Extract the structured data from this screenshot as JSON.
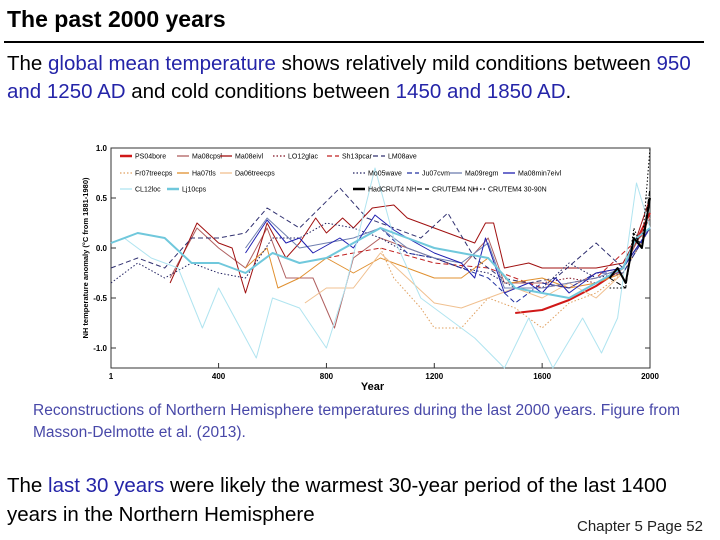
{
  "slide": {
    "title": "The past 2000 years",
    "paragraph": {
      "t1": "The ",
      "h1": "global mean temperature",
      "t2": " shows relatively mild conditions between ",
      "h2": "950 and 1250 AD",
      "t3": " and cold conditions between ",
      "h3": "1450 and 1850 AD",
      "t4": "."
    },
    "caption": "Reconstructions of  Northern Hemisphere temperatures during the last 2000 years. Figure from Masson-Delmotte et al. (2013).",
    "bottom": {
      "t1": "The ",
      "h1": "last 30 years",
      "t2": " were likely the warmest 30-year period of the last 1400 years in the Northern Hemisphere"
    },
    "page_label": "Chapter 5 Page 52",
    "colors": {
      "text": "#000000",
      "highlight": "#2424a8",
      "caption": "#4848a8"
    }
  },
  "chart_data": {
    "type": "line",
    "xlabel": "Year",
    "ylabel": "NH temperature anomaly (°C from 1881-1980)",
    "xlim": [
      1,
      2000
    ],
    "ylim": [
      -1.2,
      1.0
    ],
    "xticks": [
      "1",
      "400",
      "800",
      "1200",
      "1600",
      "2000"
    ],
    "yticks": [
      "1.0",
      "0.5",
      "0.0",
      "-0.5",
      "-1.0"
    ],
    "legend_placement": "top",
    "series": [
      {
        "name": "PS04bore",
        "color": "#d01818",
        "style": "solid-thick",
        "points": [
          [
            1500,
            -0.65
          ],
          [
            1600,
            -0.62
          ],
          [
            1700,
            -0.52
          ],
          [
            1800,
            -0.38
          ],
          [
            1900,
            -0.2
          ],
          [
            2000,
            0.35
          ]
        ]
      },
      {
        "name": "Ma08cpsl",
        "color": "#b06060",
        "style": "solid",
        "points": [
          [
            220,
            -0.3
          ],
          [
            320,
            0.2
          ],
          [
            400,
            0.0
          ],
          [
            500,
            -0.2
          ],
          [
            580,
            0.2
          ],
          [
            650,
            -0.3
          ],
          [
            750,
            -0.3
          ],
          [
            830,
            -0.8
          ],
          [
            900,
            -0.1
          ],
          [
            1000,
            0.1
          ],
          [
            1100,
            0.0
          ],
          [
            1200,
            -0.1
          ],
          [
            1300,
            -0.2
          ],
          [
            1400,
            0.1
          ],
          [
            1460,
            -0.35
          ],
          [
            1600,
            -0.35
          ],
          [
            1700,
            -0.4
          ],
          [
            1800,
            -0.25
          ],
          [
            1900,
            -0.2
          ],
          [
            2000,
            0.3
          ]
        ]
      },
      {
        "name": "Ma08eivl",
        "color": "#a01010",
        "style": "solid",
        "points": [
          [
            220,
            -0.35
          ],
          [
            320,
            0.25
          ],
          [
            400,
            0.05
          ],
          [
            450,
            0.0
          ],
          [
            500,
            -0.45
          ],
          [
            580,
            0.25
          ],
          [
            650,
            -0.1
          ],
          [
            700,
            0.05
          ],
          [
            760,
            0.3
          ],
          [
            800,
            0.15
          ],
          [
            860,
            0.3
          ],
          [
            900,
            0.2
          ],
          [
            970,
            0.4
          ],
          [
            1050,
            0.43
          ],
          [
            1100,
            0.3
          ],
          [
            1200,
            0.2
          ],
          [
            1300,
            0.1
          ],
          [
            1350,
            0.05
          ],
          [
            1390,
            0.25
          ],
          [
            1420,
            0.25
          ],
          [
            1460,
            -0.2
          ],
          [
            1550,
            -0.15
          ],
          [
            1600,
            -0.2
          ],
          [
            1700,
            -0.2
          ],
          [
            1800,
            -0.2
          ],
          [
            1900,
            -0.15
          ],
          [
            1950,
            0.1
          ],
          [
            2000,
            0.5
          ]
        ]
      },
      {
        "name": "LO12glac",
        "color": "#801020",
        "style": "dotted",
        "points": [
          [
            1600,
            -0.35
          ],
          [
            1700,
            -0.3
          ],
          [
            1800,
            -0.35
          ],
          [
            1900,
            -0.2
          ],
          [
            2000,
            0.2
          ]
        ]
      },
      {
        "name": "Sh13pcar",
        "color": "#c02020",
        "style": "dashed",
        "points": [
          [
            800,
            -0.1
          ],
          [
            1000,
            0.0
          ],
          [
            1200,
            -0.15
          ],
          [
            1400,
            -0.2
          ],
          [
            1600,
            -0.4
          ],
          [
            1800,
            -0.3
          ],
          [
            2000,
            0.2
          ]
        ]
      },
      {
        "name": "LM08ave",
        "color": "#303070",
        "style": "dashed",
        "points": [
          [
            1,
            -0.2
          ],
          [
            100,
            -0.1
          ],
          [
            200,
            -0.2
          ],
          [
            300,
            0.1
          ],
          [
            400,
            0.1
          ],
          [
            500,
            0.15
          ],
          [
            580,
            0.4
          ],
          [
            700,
            0.2
          ],
          [
            850,
            0.6
          ],
          [
            950,
            0.3
          ],
          [
            1050,
            0.2
          ],
          [
            1150,
            0.1
          ],
          [
            1250,
            0.35
          ],
          [
            1350,
            -0.1
          ],
          [
            1450,
            -0.3
          ],
          [
            1550,
            -0.35
          ],
          [
            1650,
            -0.3
          ],
          [
            1800,
            0.05
          ],
          [
            1900,
            -0.2
          ],
          [
            2000,
            0.2
          ]
        ]
      },
      {
        "name": "Fr07treecps",
        "color": "#e0a060",
        "style": "dotted",
        "points": [
          [
            1000,
            0.0
          ],
          [
            1050,
            -0.3
          ],
          [
            1100,
            -0.45
          ],
          [
            1150,
            -0.6
          ],
          [
            1200,
            -0.8
          ],
          [
            1300,
            -0.8
          ],
          [
            1400,
            -0.5
          ],
          [
            1500,
            -0.6
          ],
          [
            1600,
            -0.8
          ],
          [
            1700,
            -0.55
          ],
          [
            1800,
            -0.45
          ],
          [
            1900,
            -0.25
          ],
          [
            2000,
            0.2
          ]
        ]
      },
      {
        "name": "Ha07tls",
        "color": "#e09030",
        "style": "solid",
        "points": [
          [
            500,
            -0.2
          ],
          [
            580,
            0.0
          ],
          [
            620,
            -0.4
          ],
          [
            700,
            -0.3
          ],
          [
            800,
            -0.1
          ],
          [
            900,
            -0.25
          ],
          [
            1000,
            -0.1
          ],
          [
            1100,
            -0.2
          ],
          [
            1200,
            -0.3
          ],
          [
            1300,
            -0.3
          ],
          [
            1400,
            -0.1
          ],
          [
            1480,
            -0.35
          ],
          [
            1600,
            -0.3
          ],
          [
            1700,
            -0.4
          ],
          [
            1800,
            -0.35
          ],
          [
            1900,
            -0.25
          ],
          [
            2000,
            0.2
          ]
        ]
      },
      {
        "name": "Da06treecps",
        "color": "#f0c090",
        "style": "solid",
        "points": [
          [
            720,
            -0.55
          ],
          [
            800,
            -0.4
          ],
          [
            900,
            -0.4
          ],
          [
            1000,
            -0.05
          ],
          [
            1100,
            -0.3
          ],
          [
            1200,
            -0.55
          ],
          [
            1300,
            -0.6
          ],
          [
            1400,
            -0.5
          ],
          [
            1500,
            -0.4
          ],
          [
            1600,
            -0.5
          ],
          [
            1700,
            -0.35
          ],
          [
            1800,
            -0.5
          ],
          [
            1900,
            -0.25
          ],
          [
            2000,
            0.2
          ]
        ]
      },
      {
        "name": "Mo05wave",
        "color": "#202060",
        "style": "dotted",
        "points": [
          [
            1,
            -0.35
          ],
          [
            100,
            -0.15
          ],
          [
            200,
            -0.3
          ],
          [
            300,
            -0.15
          ],
          [
            400,
            -0.25
          ],
          [
            500,
            -0.3
          ],
          [
            600,
            0.1
          ],
          [
            700,
            0.1
          ],
          [
            800,
            0.25
          ],
          [
            900,
            0.2
          ],
          [
            1000,
            0.1
          ],
          [
            1100,
            -0.05
          ],
          [
            1200,
            -0.1
          ],
          [
            1300,
            -0.2
          ],
          [
            1400,
            -0.25
          ],
          [
            1500,
            -0.4
          ],
          [
            1600,
            -0.4
          ],
          [
            1700,
            -0.15
          ],
          [
            1800,
            -0.3
          ],
          [
            1900,
            -0.25
          ],
          [
            2000,
            0.2
          ]
        ]
      },
      {
        "name": "Ju07cvm",
        "color": "#2030a0",
        "style": "dashed",
        "points": [
          [
            1000,
            0.2
          ],
          [
            1100,
            -0.05
          ],
          [
            1200,
            -0.1
          ],
          [
            1300,
            -0.2
          ],
          [
            1400,
            -0.3
          ],
          [
            1500,
            -0.55
          ],
          [
            1600,
            -0.35
          ],
          [
            1700,
            -0.4
          ],
          [
            1800,
            -0.25
          ],
          [
            1900,
            -0.25
          ],
          [
            2000,
            0.2
          ]
        ]
      },
      {
        "name": "Ma09regm",
        "color": "#7080b0",
        "style": "solid",
        "points": [
          [
            500,
            0.0
          ],
          [
            580,
            0.3
          ],
          [
            700,
            0.0
          ],
          [
            800,
            0.05
          ],
          [
            900,
            0.1
          ],
          [
            1000,
            0.2
          ],
          [
            1100,
            0.0
          ],
          [
            1200,
            -0.1
          ],
          [
            1300,
            -0.15
          ],
          [
            1400,
            0.05
          ],
          [
            1460,
            -0.4
          ],
          [
            1600,
            -0.4
          ],
          [
            1700,
            -0.35
          ],
          [
            1800,
            -0.3
          ],
          [
            1900,
            -0.2
          ],
          [
            2000,
            0.2
          ]
        ]
      },
      {
        "name": "Ma08min7eivl",
        "color": "#2020b0",
        "style": "solid",
        "points": [
          [
            500,
            -0.05
          ],
          [
            580,
            0.28
          ],
          [
            650,
            0.05
          ],
          [
            700,
            0.1
          ],
          [
            750,
            -0.05
          ],
          [
            850,
            0.1
          ],
          [
            900,
            0.0
          ],
          [
            980,
            0.33
          ],
          [
            1050,
            0.18
          ],
          [
            1100,
            0.1
          ],
          [
            1200,
            -0.05
          ],
          [
            1300,
            -0.15
          ],
          [
            1350,
            -0.3
          ],
          [
            1390,
            0.1
          ],
          [
            1460,
            -0.45
          ],
          [
            1550,
            -0.35
          ],
          [
            1600,
            -0.45
          ],
          [
            1650,
            -0.3
          ],
          [
            1700,
            -0.45
          ],
          [
            1800,
            -0.25
          ],
          [
            1900,
            -0.2
          ],
          [
            2000,
            0.2
          ]
        ]
      },
      {
        "name": "CL12loc",
        "color": "#b0e4f0",
        "style": "solid",
        "points": [
          [
            1,
            0.05
          ],
          [
            50,
            0.1
          ],
          [
            150,
            -0.1
          ],
          [
            250,
            -0.2
          ],
          [
            340,
            -0.8
          ],
          [
            400,
            -0.4
          ],
          [
            460,
            -0.7
          ],
          [
            540,
            -1.1
          ],
          [
            600,
            -0.5
          ],
          [
            700,
            -0.6
          ],
          [
            800,
            -1.0
          ],
          [
            870,
            -0.4
          ],
          [
            980,
            0.8
          ],
          [
            1050,
            0.1
          ],
          [
            1150,
            -0.5
          ],
          [
            1250,
            -0.7
          ],
          [
            1350,
            -0.9
          ],
          [
            1460,
            -1.2
          ],
          [
            1550,
            -0.7
          ],
          [
            1640,
            -1.2
          ],
          [
            1750,
            -0.7
          ],
          [
            1820,
            -1.05
          ],
          [
            1880,
            -0.7
          ],
          [
            1950,
            0.65
          ],
          [
            2000,
            0.2
          ]
        ]
      },
      {
        "name": "Lj10cps",
        "color": "#70c8dc",
        "style": "solid-thick",
        "points": [
          [
            1,
            0.05
          ],
          [
            100,
            0.15
          ],
          [
            200,
            0.1
          ],
          [
            300,
            -0.15
          ],
          [
            400,
            -0.15
          ],
          [
            500,
            -0.25
          ],
          [
            600,
            -0.05
          ],
          [
            700,
            -0.15
          ],
          [
            800,
            -0.1
          ],
          [
            900,
            0.05
          ],
          [
            1000,
            0.2
          ],
          [
            1100,
            0.1
          ],
          [
            1200,
            0.0
          ],
          [
            1300,
            -0.05
          ],
          [
            1400,
            -0.1
          ],
          [
            1500,
            -0.4
          ],
          [
            1600,
            -0.45
          ],
          [
            1700,
            -0.5
          ],
          [
            1800,
            -0.35
          ],
          [
            1900,
            -0.2
          ],
          [
            1950,
            0.1
          ],
          [
            2000,
            0.2
          ]
        ]
      },
      {
        "name": "HadCRUT4 NH",
        "color": "#000000",
        "style": "solid-thick",
        "points": [
          [
            1850,
            -0.3
          ],
          [
            1880,
            -0.2
          ],
          [
            1910,
            -0.35
          ],
          [
            1940,
            0.1
          ],
          [
            1970,
            0.0
          ],
          [
            2000,
            0.5
          ]
        ]
      },
      {
        "name": "CRUTEM4 NH",
        "color": "#000000",
        "style": "dashed",
        "points": [
          [
            1850,
            -0.3
          ],
          [
            1910,
            -0.4
          ],
          [
            1940,
            0.15
          ],
          [
            1970,
            0.0
          ],
          [
            2000,
            0.6
          ]
        ]
      },
      {
        "name": "CRUTEM4 30-90N",
        "color": "#000000",
        "style": "dotted",
        "points": [
          [
            1850,
            -0.4
          ],
          [
            1910,
            -0.4
          ],
          [
            1940,
            0.2
          ],
          [
            1970,
            0.0
          ],
          [
            2000,
            1.0
          ]
        ]
      }
    ]
  }
}
